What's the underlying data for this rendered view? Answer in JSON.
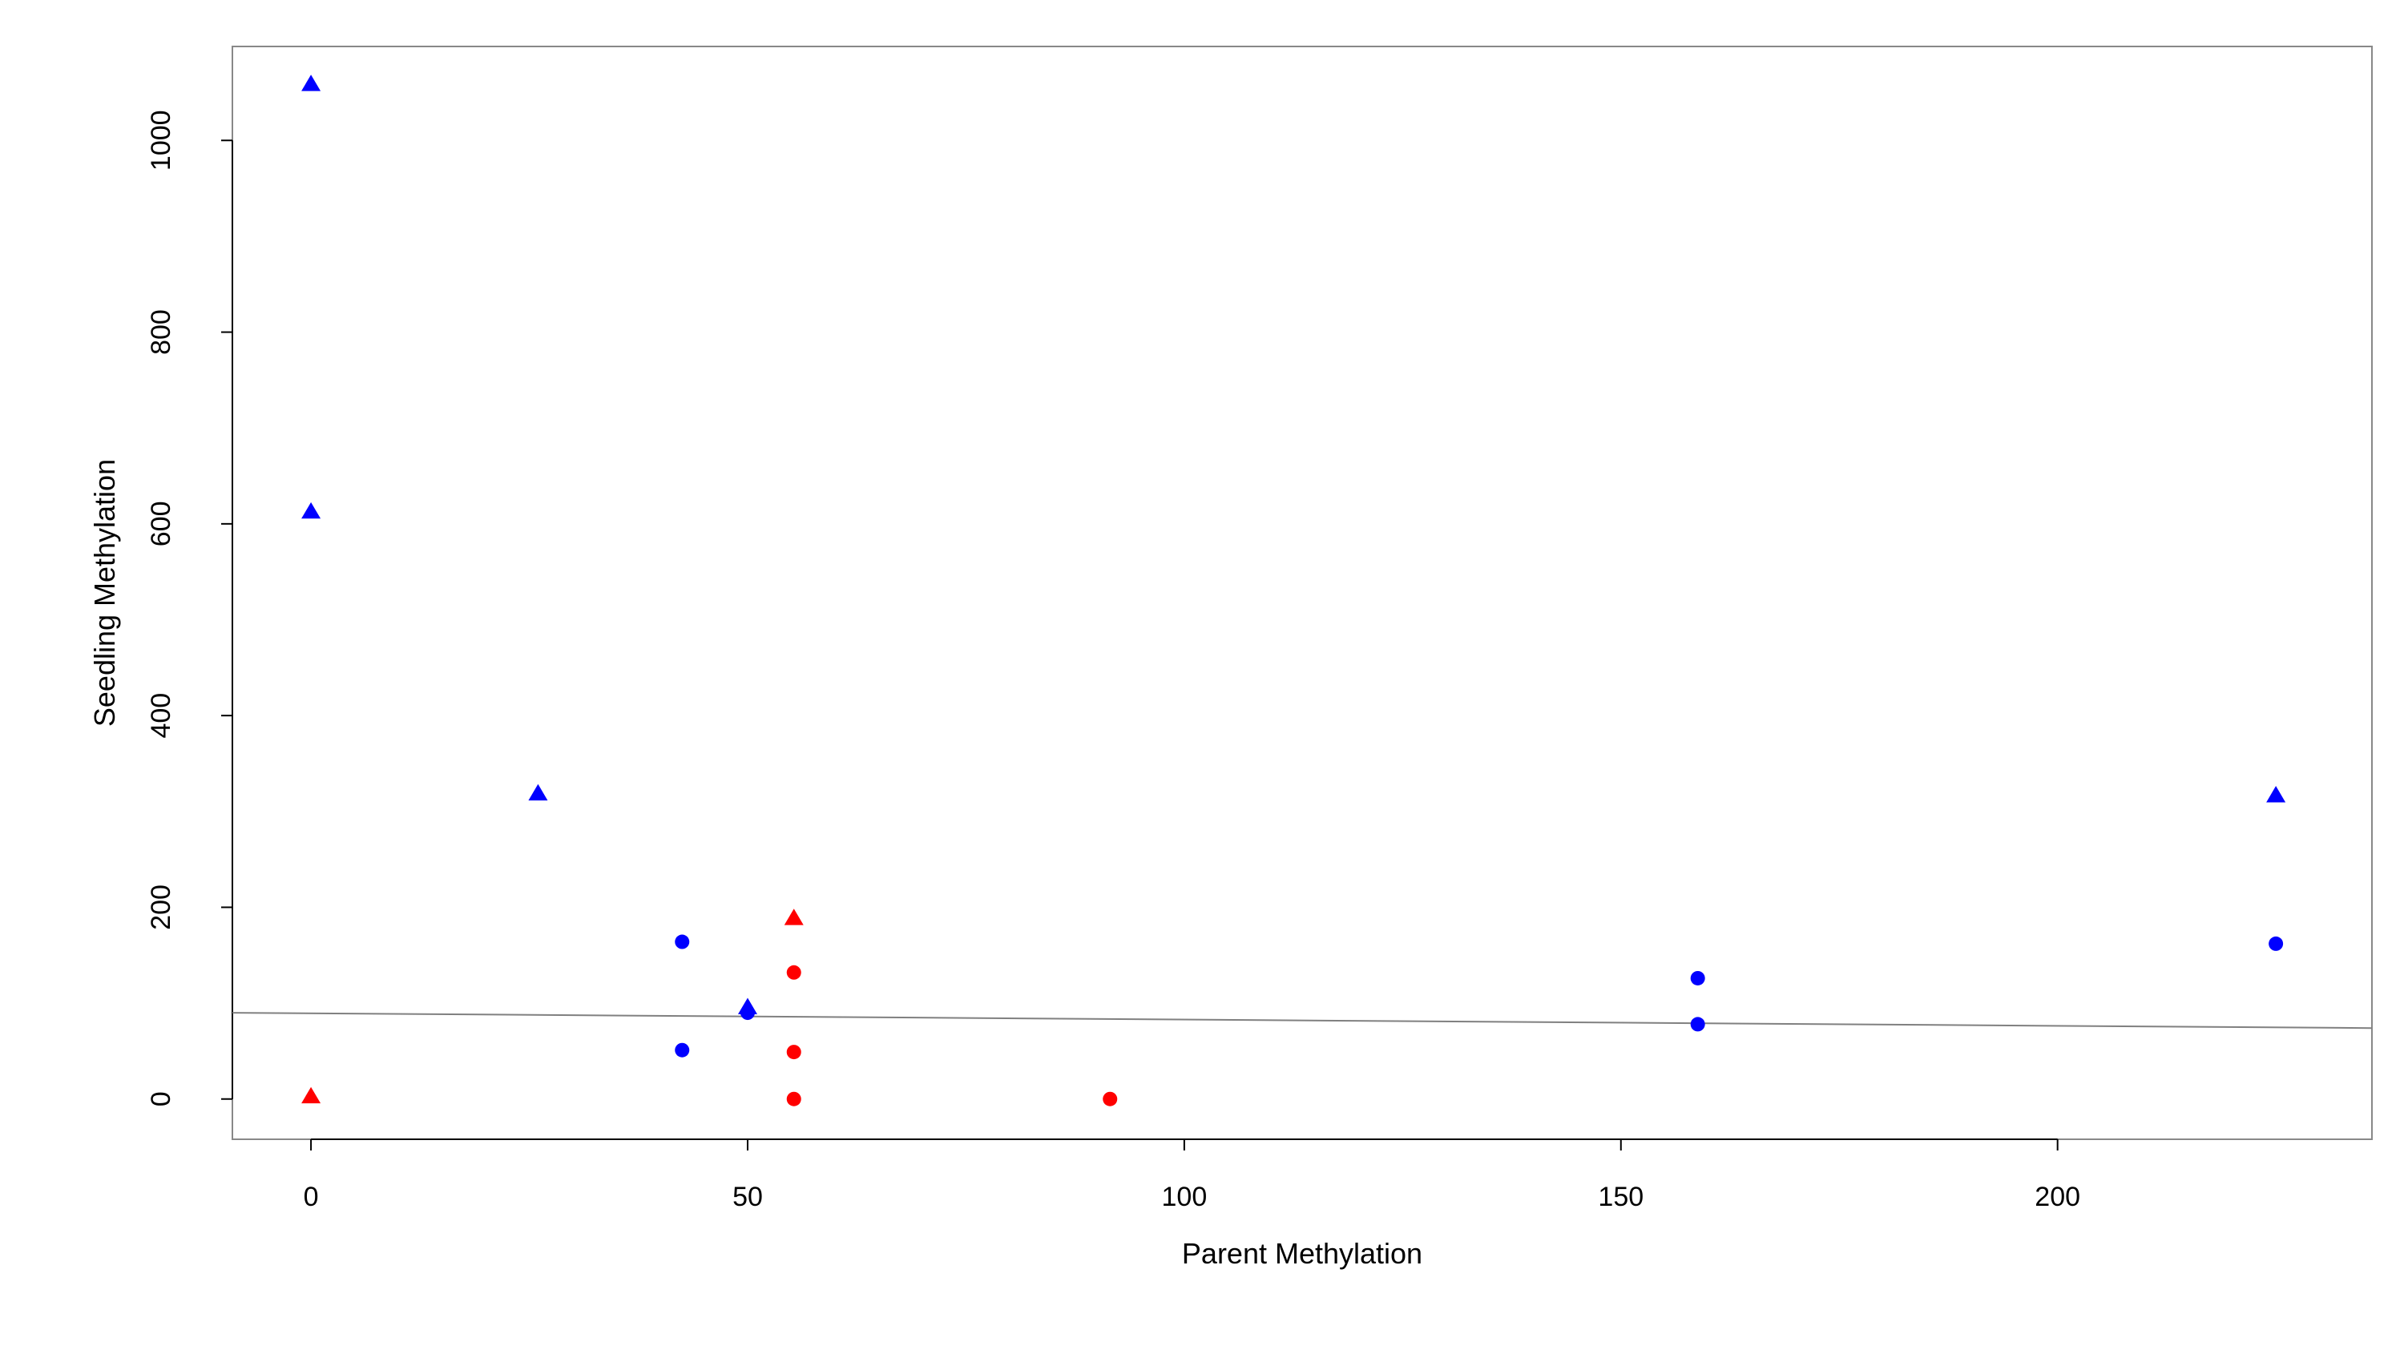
{
  "chart_data": {
    "type": "scatter",
    "xlabel": "Parent Methylation",
    "ylabel": "Seedling Methylation",
    "xlim": [
      -9,
      236
    ],
    "ylim": [
      -42,
      1098
    ],
    "xticks": [
      0,
      50,
      100,
      150,
      200
    ],
    "yticks": [
      0,
      200,
      400,
      600,
      800,
      1000
    ],
    "grid": false,
    "legend": "none",
    "series": [
      {
        "color": "#0000ff",
        "marker": "triangle",
        "points": [
          {
            "x": 0,
            "y": 1058
          },
          {
            "x": 0,
            "y": 612
          },
          {
            "x": 26,
            "y": 318
          },
          {
            "x": 50,
            "y": 95
          },
          {
            "x": 225,
            "y": 316
          }
        ]
      },
      {
        "color": "#0000ff",
        "marker": "circle",
        "points": [
          {
            "x": 42.5,
            "y": 164
          },
          {
            "x": 42.5,
            "y": 51
          },
          {
            "x": 50,
            "y": 90
          },
          {
            "x": 158.8,
            "y": 126
          },
          {
            "x": 158.8,
            "y": 78
          },
          {
            "x": 225,
            "y": 162
          }
        ]
      },
      {
        "color": "#ff0000",
        "marker": "triangle",
        "points": [
          {
            "x": 0,
            "y": 2
          },
          {
            "x": 55.3,
            "y": 188
          }
        ]
      },
      {
        "color": "#ff0000",
        "marker": "circle",
        "points": [
          {
            "x": 55.3,
            "y": 132
          },
          {
            "x": 55.3,
            "y": 49
          },
          {
            "x": 55.3,
            "y": 0
          },
          {
            "x": 91.5,
            "y": 0
          }
        ]
      }
    ],
    "fit_line": {
      "color": "#808080",
      "points": [
        {
          "x": -9,
          "y": 90
        },
        {
          "x": 236,
          "y": 74
        }
      ]
    }
  }
}
